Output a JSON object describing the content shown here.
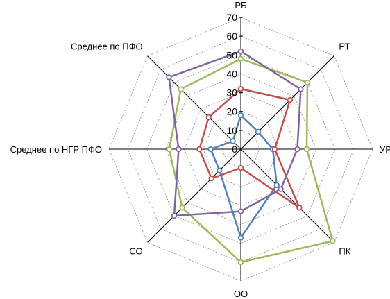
{
  "chart_data": {
    "type": "radar",
    "title": "",
    "categories": [
      "РБ",
      "РТ",
      "УР",
      "ПК",
      "ОО",
      "СО",
      "Среднее по НГР ПФО",
      "Среднее по ПФО"
    ],
    "rlim": [
      0,
      70
    ],
    "ticks": [
      0,
      10,
      20,
      30,
      40,
      50,
      60,
      70
    ],
    "grid": true,
    "legend": "none",
    "series": [
      {
        "color": "#4f81bd",
        "values": [
          18,
          13,
          17,
          27,
          47,
          16,
          16,
          6
        ]
      },
      {
        "color": "#c0504d",
        "values": [
          32,
          37,
          18,
          44,
          10,
          22,
          22,
          24
        ]
      },
      {
        "color": "#9bbb59",
        "values": [
          48,
          50,
          35,
          69,
          60,
          44,
          38,
          45
        ]
      },
      {
        "color": "#8064a2",
        "values": [
          52,
          45,
          30,
          30,
          33,
          50,
          33,
          54
        ]
      }
    ]
  }
}
